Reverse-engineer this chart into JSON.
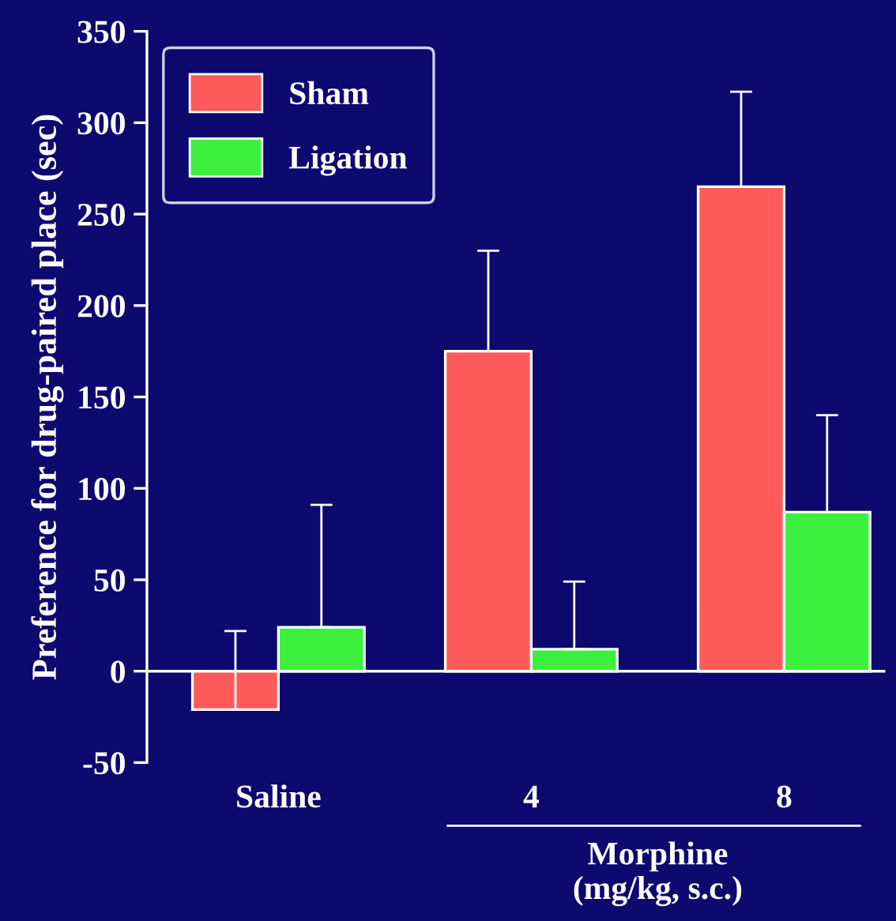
{
  "chart_data": {
    "type": "bar",
    "ylabel": "Preference for drug-paired place (sec)",
    "categories": [
      "Saline",
      "4",
      "8"
    ],
    "series": [
      {
        "name": "Sham",
        "color": "#ff5a5a",
        "values": [
          -21,
          175,
          265
        ],
        "errors": [
          [
            -21,
            22
          ],
          [
            175,
            230
          ],
          [
            265,
            317
          ]
        ]
      },
      {
        "name": "Ligation",
        "color": "#3ef03e",
        "values": [
          24,
          12,
          87
        ],
        "errors": [
          [
            24,
            91
          ],
          [
            12,
            49
          ],
          [
            87,
            140
          ]
        ]
      }
    ],
    "annotations": [
      "Morphine\n(mg/kg, s.c.)"
    ],
    "ref_lines": [
      {
        "axis": "y",
        "value": 0,
        "color": "#ffffff"
      }
    ],
    "ylim": [
      -50,
      350
    ],
    "yticks": [
      -50,
      0,
      50,
      100,
      150,
      200,
      250,
      300,
      350
    ],
    "grid": false,
    "legend": "top left"
  }
}
